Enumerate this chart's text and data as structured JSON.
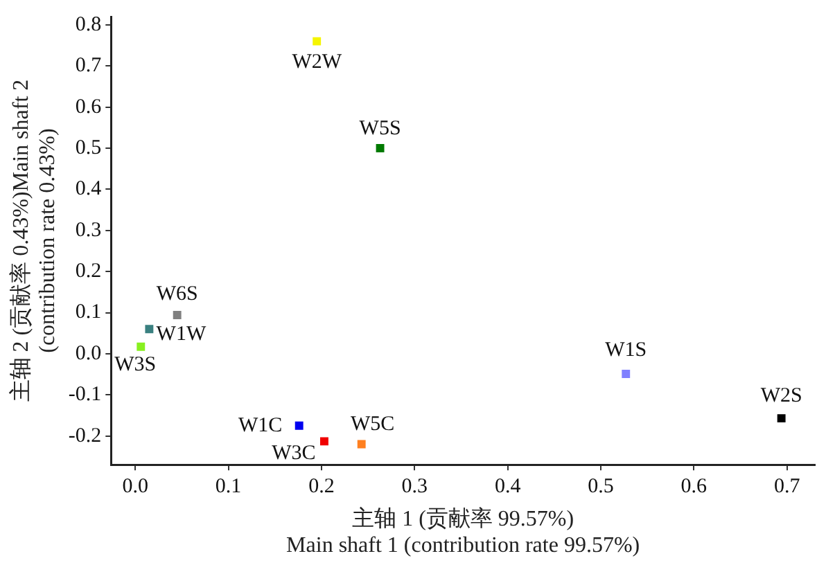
{
  "chart_data": {
    "type": "scatter",
    "xlabel": "主轴 1 (贡献率 99.57%)\nMain shaft 1 (contribution rate 99.57%)",
    "ylabel": "主轴 2 (贡献率 0.43%)Main shaft 2\n(contribution rate 0.43%)",
    "xlim": [
      -0.026,
      0.73
    ],
    "ylim": [
      -0.27,
      0.82
    ],
    "xticks": [
      {
        "value": 0,
        "label": "0.0"
      },
      {
        "value": 0.1,
        "label": "0.1"
      },
      {
        "value": 0.2,
        "label": "0.2"
      },
      {
        "value": 0.3,
        "label": "0.3"
      },
      {
        "value": 0.4,
        "label": "0.4"
      },
      {
        "value": 0.5,
        "label": "0.5"
      },
      {
        "value": 0.6,
        "label": "0.6"
      },
      {
        "value": 0.7,
        "label": "0.7"
      }
    ],
    "yticks": [
      {
        "value": -0.2,
        "label": "-0.2"
      },
      {
        "value": -0.1,
        "label": "-0.1"
      },
      {
        "value": 0,
        "label": "0.0"
      },
      {
        "value": 0.1,
        "label": "0.1"
      },
      {
        "value": 0.2,
        "label": "0.2"
      },
      {
        "value": 0.3,
        "label": "0.3"
      },
      {
        "value": 0.4,
        "label": "0.4"
      },
      {
        "value": 0.5,
        "label": "0.5"
      },
      {
        "value": 0.6,
        "label": "0.6"
      },
      {
        "value": 0.7,
        "label": "0.7"
      },
      {
        "value": 0.8,
        "label": "0.8"
      }
    ],
    "grid": false,
    "legend": false,
    "marker": "square",
    "series": [
      {
        "name": "W2W",
        "color": "#f5f500",
        "x": [
          0.195
        ],
        "values": [
          0.76
        ]
      },
      {
        "name": "W5S",
        "color": "#007a00",
        "x": [
          0.263
        ],
        "values": [
          0.5
        ]
      },
      {
        "name": "W6S",
        "color": "#808080",
        "x": [
          0.045
        ],
        "values": [
          0.094
        ]
      },
      {
        "name": "W1W",
        "color": "#3a8080",
        "x": [
          0.015
        ],
        "values": [
          0.06
        ]
      },
      {
        "name": "W3S",
        "color": "#88f020",
        "x": [
          0.006
        ],
        "values": [
          0.017
        ]
      },
      {
        "name": "W1C",
        "color": "#0000f0",
        "x": [
          0.176
        ],
        "values": [
          -0.175
        ]
      },
      {
        "name": "W3C",
        "color": "#f00000",
        "x": [
          0.203
        ],
        "values": [
          -0.213
        ]
      },
      {
        "name": "W5C",
        "color": "#ff8020",
        "x": [
          0.243
        ],
        "values": [
          -0.22
        ]
      },
      {
        "name": "W1S",
        "color": "#8080ff",
        "x": [
          0.527
        ],
        "values": [
          -0.049
        ]
      },
      {
        "name": "W2S",
        "color": "#000000",
        "x": [
          0.694
        ],
        "values": [
          -0.157
        ]
      }
    ]
  }
}
